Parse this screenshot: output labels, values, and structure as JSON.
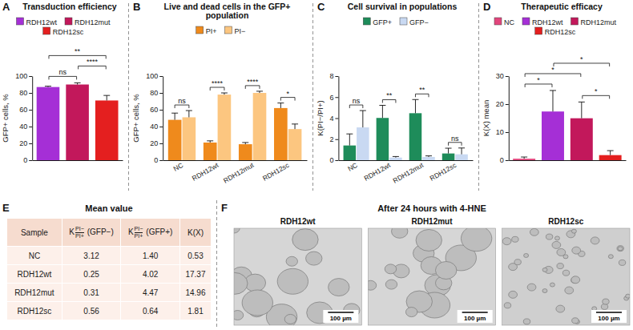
{
  "chart_data": [
    {
      "panel": "A",
      "type": "bar",
      "title": "Transduction efficiency",
      "ylabel": "GFP+ cells, %",
      "categories": [
        "RDH12wt",
        "RDH12mut",
        "RDH12sc"
      ],
      "values": [
        87,
        90,
        71
      ],
      "errors": [
        1,
        2,
        6
      ],
      "colors": [
        "#a52fd6",
        "#c2185b",
        "#e41f1f"
      ],
      "ylim": [
        0,
        100
      ],
      "yticks": [
        0,
        20,
        40,
        60,
        80,
        100
      ],
      "legend": "top",
      "tick_labels": "y",
      "annotations": [
        {
          "label": "ns",
          "between": [
            0,
            1
          ]
        },
        {
          "label": "**",
          "between": [
            0,
            2
          ]
        },
        {
          "label": "****",
          "between": [
            1,
            2
          ]
        }
      ]
    },
    {
      "panel": "B",
      "type": "bar",
      "title": "Live and dead cells in the GFP+ population",
      "ylabel": "GFP+ cells, %",
      "categories": [
        "NC",
        "RDH12wt",
        "RDH12mut",
        "RDH12sc"
      ],
      "series": [
        {
          "name": "PI+",
          "color": "#ef8a1c",
          "values": [
            48,
            21,
            19,
            62
          ],
          "errors": [
            8,
            2,
            2,
            6
          ]
        },
        {
          "name": "PI−",
          "color": "#fcc680",
          "values": [
            51,
            78,
            80,
            37
          ],
          "errors": [
            8,
            2,
            2,
            6
          ]
        }
      ],
      "ylim": [
        0,
        100
      ],
      "yticks": [
        0,
        20,
        40,
        60,
        80,
        100
      ],
      "legend": "top",
      "annotations": [
        {
          "label": "ns",
          "category": 0
        },
        {
          "label": "****",
          "category": 1
        },
        {
          "label": "****",
          "category": 2
        },
        {
          "label": "*",
          "category": 3
        }
      ]
    },
    {
      "panel": "C",
      "type": "bar",
      "title": "Cell survival in populations",
      "ylabel": "K(PI−/PI+)",
      "categories": [
        "NC",
        "RDH12wt",
        "RDH12mut",
        "RDH12sc"
      ],
      "series": [
        {
          "name": "GFP+",
          "color": "#1e8c5a",
          "values": [
            1.4,
            4.02,
            4.47,
            0.64
          ],
          "errors": [
            1.1,
            1.2,
            1.3,
            0.5
          ]
        },
        {
          "name": "GFP−",
          "color": "#c9d9f2",
          "values": [
            3.12,
            0.25,
            0.31,
            0.56
          ],
          "errors": [
            1.6,
            0.1,
            0.1,
            0.6
          ]
        }
      ],
      "ylim": [
        0,
        8
      ],
      "yticks": [
        0,
        2,
        4,
        6,
        8
      ],
      "legend": "top",
      "annotations": [
        {
          "label": "ns",
          "category": 0
        },
        {
          "label": "**",
          "category": 1
        },
        {
          "label": "**",
          "category": 2
        },
        {
          "label": "ns",
          "category": 3
        }
      ]
    },
    {
      "panel": "D",
      "type": "bar",
      "title": "Therapeutic efficacy",
      "ylabel": "K(X) mean",
      "categories": [
        "NC",
        "RDH12wt",
        "RDH12mut",
        "RDH12sc"
      ],
      "values": [
        0.53,
        17.37,
        14.96,
        1.81
      ],
      "errors": [
        0.6,
        7.5,
        5.8,
        1.6
      ],
      "colors": [
        "#e2457c",
        "#a52fd6",
        "#c2185b",
        "#e41f1f"
      ],
      "ylim": [
        0,
        30
      ],
      "yticks": [
        0,
        10,
        20,
        30
      ],
      "legend": "top",
      "tick_labels": "y",
      "annotations": [
        {
          "label": "*",
          "between": [
            0,
            1
          ]
        },
        {
          "label": "*",
          "between": [
            2,
            3
          ]
        },
        {
          "label": "*",
          "between": [
            0,
            2
          ]
        },
        {
          "label": "*",
          "between": [
            1,
            3
          ]
        }
      ]
    }
  ],
  "table": {
    "panel": "E",
    "title": "Mean value",
    "columns": [
      "Sample",
      {
        "symbol": "K",
        "numerator": "PI−",
        "denominator": "PI+",
        "suffix": "(GFP−)"
      },
      {
        "symbol": "K",
        "numerator": "PI−",
        "denominator": "PI+",
        "suffix": "(GFP+)"
      },
      "K(X)"
    ],
    "rows": [
      [
        "NC",
        "3.12",
        "1.40",
        "0.53"
      ],
      [
        "RDH12wt",
        "0.25",
        "4.02",
        "17.37"
      ],
      [
        "RDH12mut",
        "0.31",
        "4.47",
        "14.96"
      ],
      [
        "RDH12sc",
        "0.56",
        "0.64",
        "1.81"
      ]
    ]
  },
  "micrographs": {
    "panel": "F",
    "title": "After 24 hours with 4-HNE",
    "images": [
      {
        "label": "RDH12wt",
        "scale_bar": "100 µm"
      },
      {
        "label": "RDH12mut",
        "scale_bar": "100 µm"
      },
      {
        "label": "RDH12sc",
        "scale_bar": "100 µm"
      }
    ]
  }
}
